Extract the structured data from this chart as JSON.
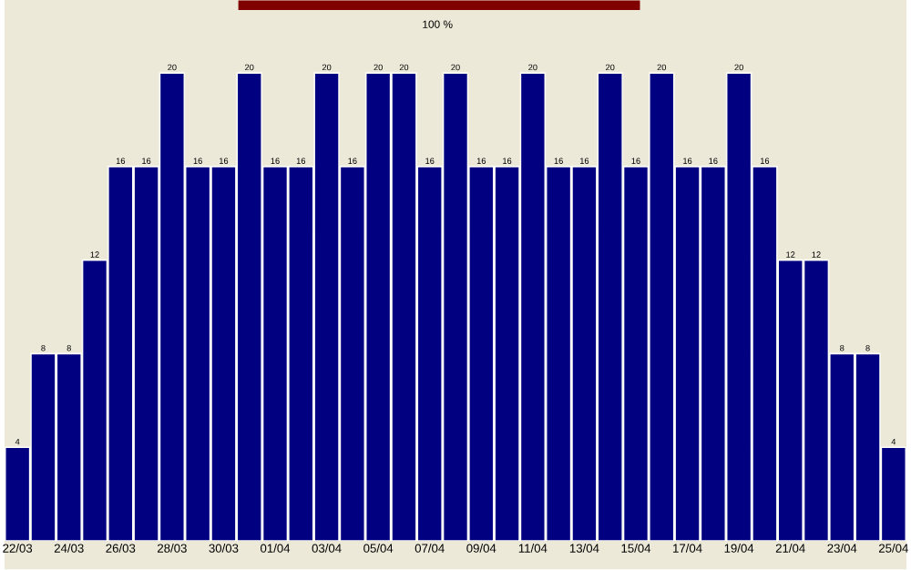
{
  "chart_data": {
    "type": "bar",
    "categories": [
      "22/03",
      null,
      "24/03",
      null,
      "26/03",
      null,
      "28/03",
      null,
      "30/03",
      null,
      "01/04",
      null,
      "03/04",
      null,
      "05/04",
      null,
      "07/04",
      null,
      "09/04",
      null,
      "11/04",
      null,
      "13/04",
      null,
      "15/04",
      null,
      "17/04",
      null,
      "19/04",
      null,
      "21/04",
      null,
      "23/04",
      null,
      "25/04"
    ],
    "values": [
      4,
      8,
      8,
      12,
      16,
      16,
      20,
      16,
      16,
      20,
      16,
      16,
      20,
      16,
      20,
      20,
      16,
      20,
      16,
      16,
      20,
      16,
      16,
      20,
      16,
      20,
      16,
      16,
      20,
      16,
      12,
      12,
      8,
      8,
      4
    ],
    "color": "#000080",
    "data_labels": true,
    "annotations": [
      "100 %"
    ]
  }
}
